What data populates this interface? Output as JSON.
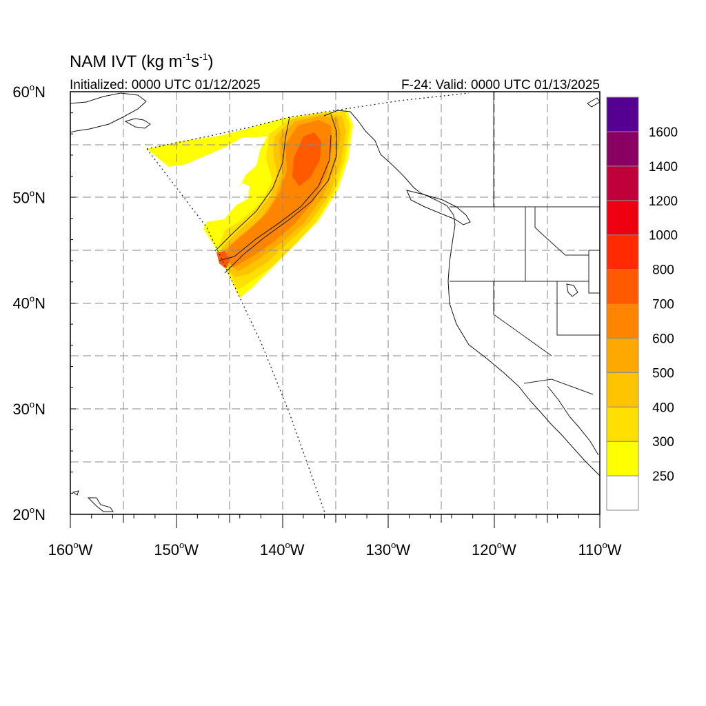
{
  "title": {
    "main": "NAM IVT (kg m",
    "exp1": "-1",
    "mid": "s",
    "exp2": "-1",
    "close": ")"
  },
  "initialized_label": "Initialized: 0000 UTC 01/12/2025",
  "valid_label": "F-24: Valid: 0000 UTC 01/13/2025",
  "degree_symbol": "o",
  "lat_ticks": [
    {
      "value": 20,
      "num": "20",
      "hemi": "N"
    },
    {
      "value": 30,
      "num": "30",
      "hemi": "N"
    },
    {
      "value": 40,
      "num": "40",
      "hemi": "N"
    },
    {
      "value": 50,
      "num": "50",
      "hemi": "N"
    },
    {
      "value": 60,
      "num": "60",
      "hemi": "N"
    }
  ],
  "lon_ticks": [
    {
      "value": -160,
      "num": "160",
      "hemi": "W"
    },
    {
      "value": -150,
      "num": "150",
      "hemi": "W"
    },
    {
      "value": -140,
      "num": "140",
      "hemi": "W"
    },
    {
      "value": -130,
      "num": "130",
      "hemi": "W"
    },
    {
      "value": -120,
      "num": "120",
      "hemi": "W"
    },
    {
      "value": -110,
      "num": "110",
      "hemi": "W"
    }
  ],
  "colorbar": {
    "levels": [
      {
        "color": "#ffffff",
        "label": "250"
      },
      {
        "color": "#ffff00",
        "label": "300"
      },
      {
        "color": "#ffe000",
        "label": "400"
      },
      {
        "color": "#ffc400",
        "label": "500"
      },
      {
        "color": "#ffa800",
        "label": "600"
      },
      {
        "color": "#ff8400",
        "label": "700"
      },
      {
        "color": "#ff5a00",
        "label": "800"
      },
      {
        "color": "#ff2a00",
        "label": "1000"
      },
      {
        "color": "#ee0010",
        "label": "1200"
      },
      {
        "color": "#c0003a",
        "label": "1400"
      },
      {
        "color": "#8a0062",
        "label": "1600"
      },
      {
        "color": "#550090",
        "label": ""
      }
    ]
  }
}
